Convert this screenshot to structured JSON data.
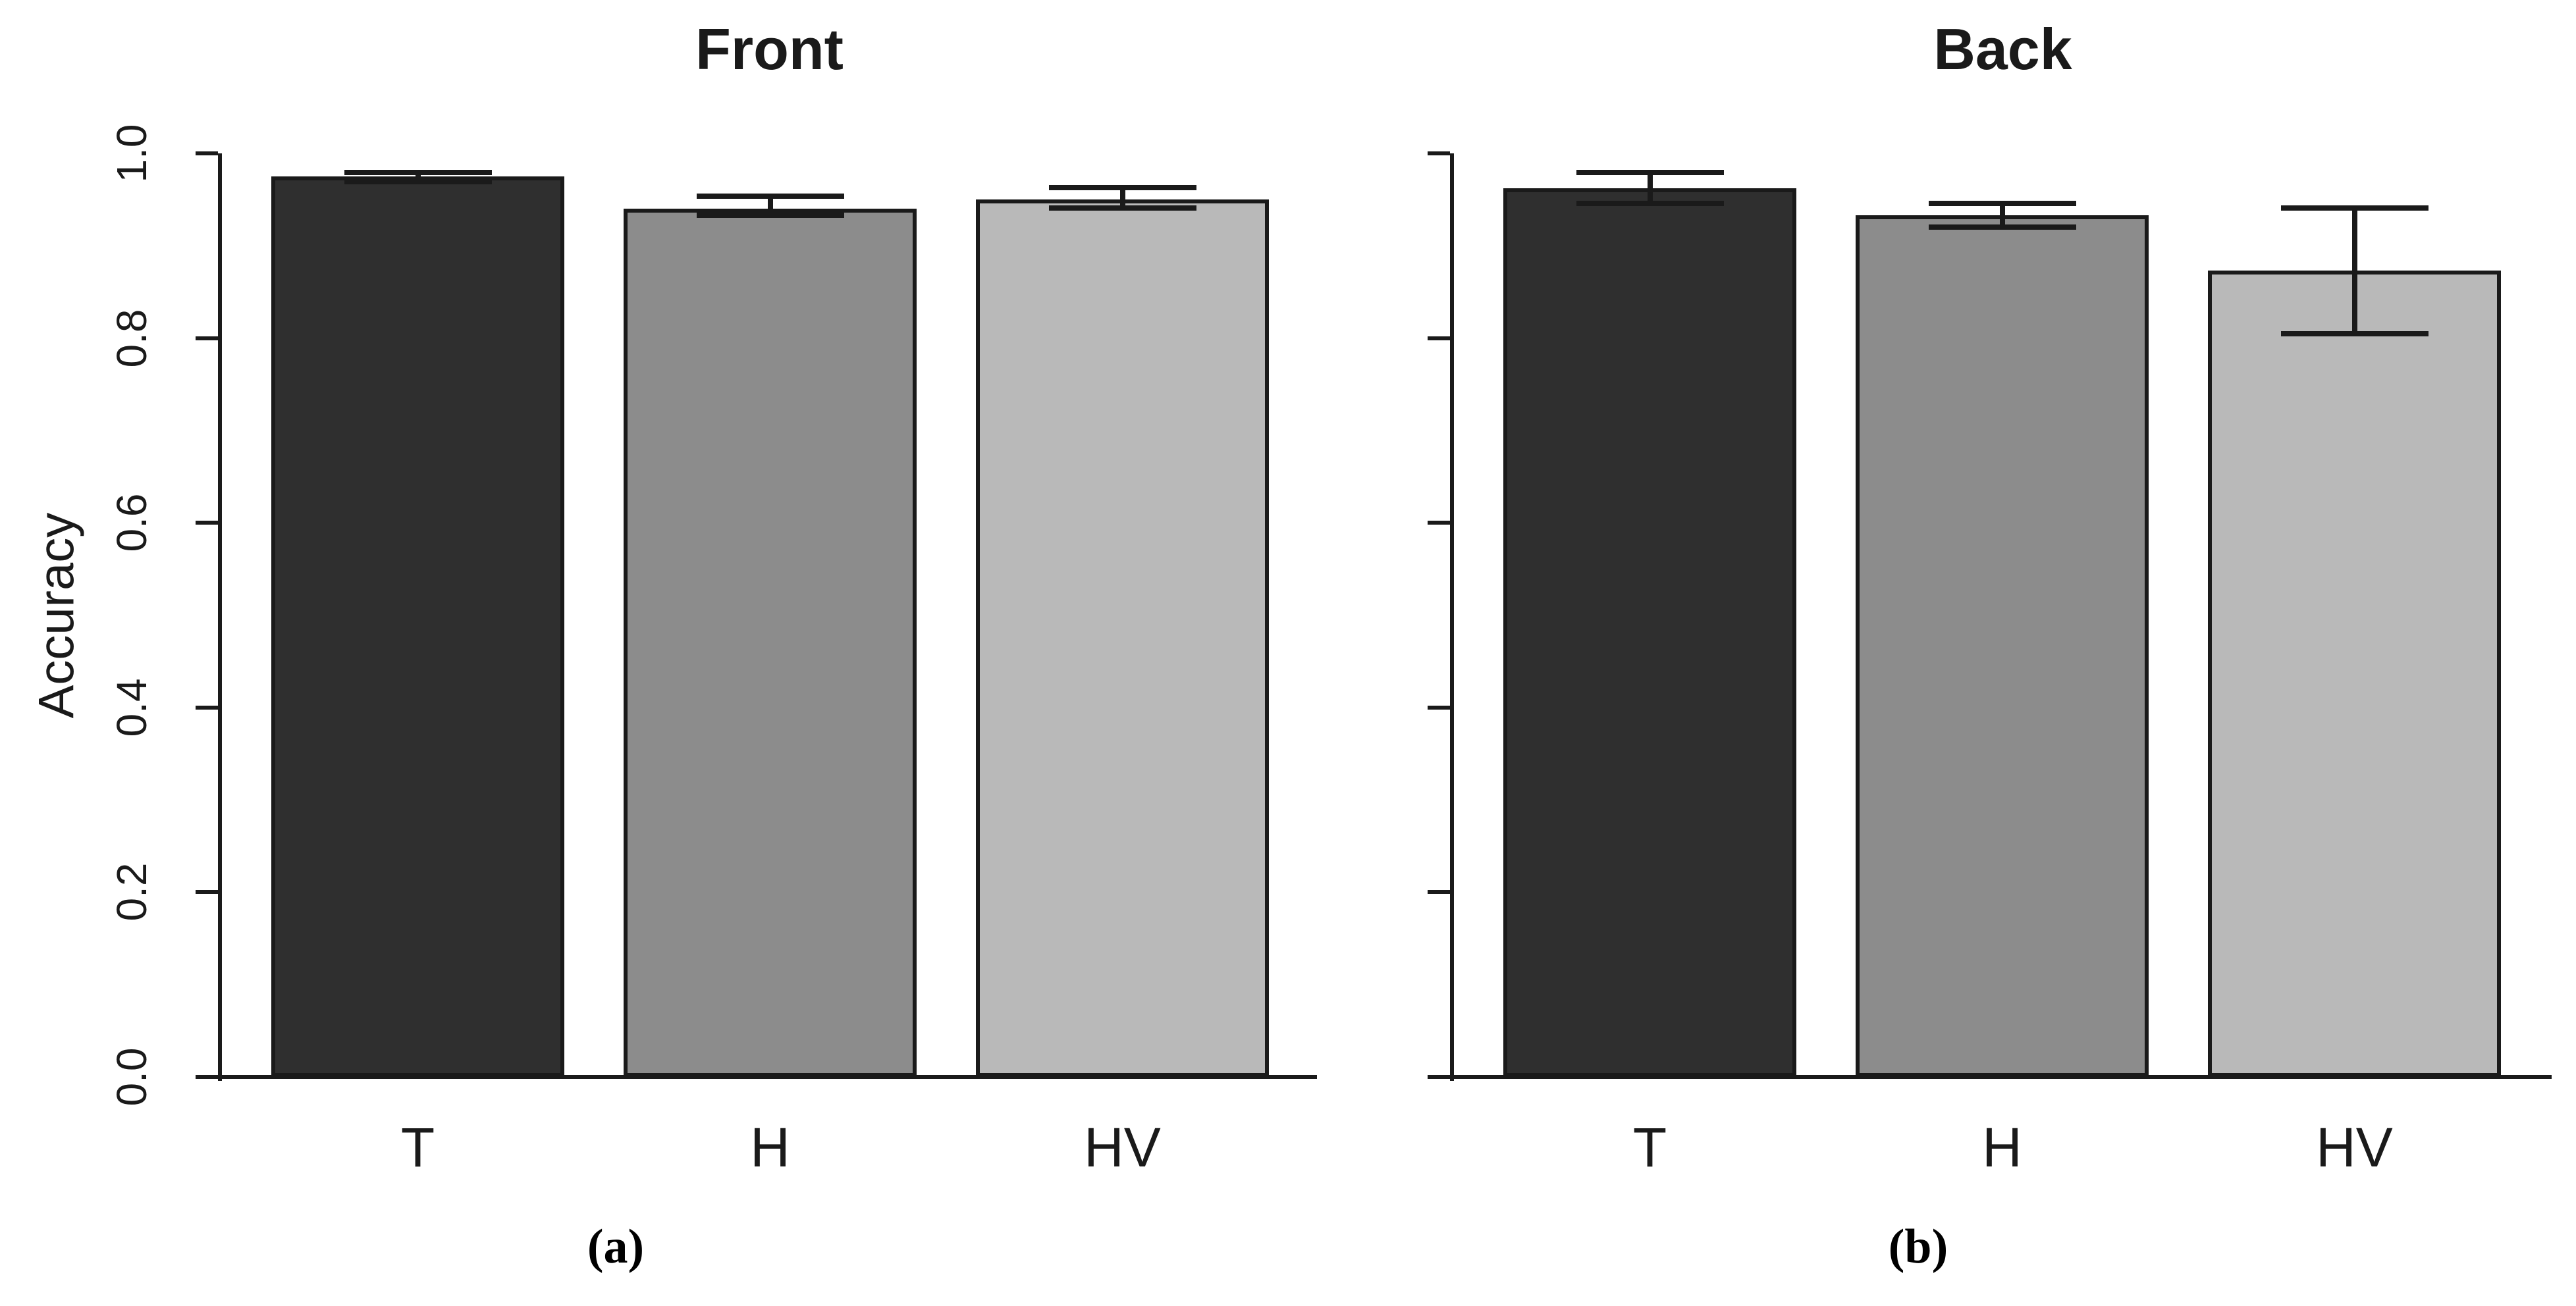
{
  "figure": {
    "background": "#ffffff",
    "text_color": "#1a1a1a"
  },
  "chart_data": [
    {
      "type": "bar",
      "panel_label": "(a)",
      "title": "Front",
      "ylabel": "Accuracy",
      "categories": [
        "T",
        "H",
        "HV"
      ],
      "values": [
        0.975,
        0.94,
        0.95
      ],
      "error_low": [
        0.969,
        0.933,
        0.941
      ],
      "error_high": [
        0.979,
        0.954,
        0.963
      ],
      "bar_colors": [
        "#2f2f2f",
        "#8c8c8c",
        "#b9b9b9"
      ],
      "bar_border_color": "#1a1a1a",
      "ylim": [
        0,
        1
      ],
      "yticks": [
        "0.0",
        "0.2",
        "0.4",
        "0.6",
        "0.8",
        "1.0"
      ],
      "show_ytick_labels": true,
      "grid": false,
      "legend": null
    },
    {
      "type": "bar",
      "panel_label": "(b)",
      "title": "Back",
      "ylabel": "",
      "categories": [
        "T",
        "H",
        "HV"
      ],
      "values": [
        0.962,
        0.933,
        0.873
      ],
      "error_low": [
        0.946,
        0.92,
        0.805
      ],
      "error_high": [
        0.979,
        0.946,
        0.941
      ],
      "bar_colors": [
        "#2f2f2f",
        "#8c8c8c",
        "#b9b9b9"
      ],
      "bar_border_color": "#1a1a1a",
      "ylim": [
        0,
        1
      ],
      "yticks": [
        "0.0",
        "0.2",
        "0.4",
        "0.6",
        "0.8",
        "1.0"
      ],
      "show_ytick_labels": false,
      "grid": false,
      "legend": null
    }
  ]
}
